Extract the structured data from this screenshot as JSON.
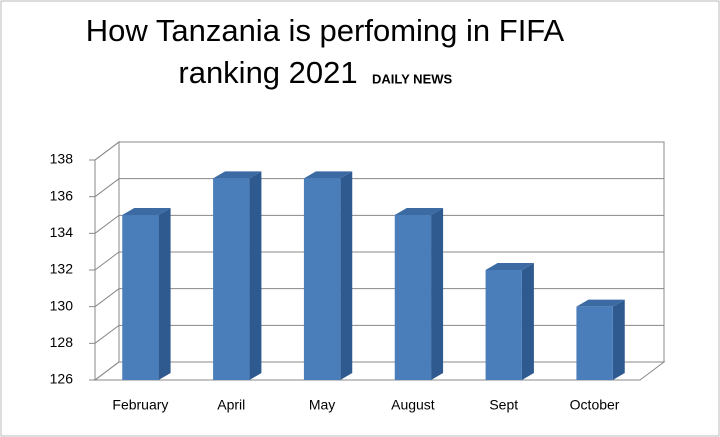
{
  "chart_data": {
    "type": "bar",
    "title": [
      "How Tanzania is perfoming in FIFA",
      "ranking 2021"
    ],
    "source": "DAILY NEWS",
    "categories": [
      "February",
      "April",
      "May",
      "August",
      "Sept",
      "October"
    ],
    "values": [
      135,
      137,
      137,
      135,
      132,
      130
    ],
    "color": "#4a7ebb",
    "ylim": [
      126,
      138
    ],
    "yticks": [
      126,
      128,
      130,
      132,
      134,
      136,
      138
    ],
    "grid": true
  }
}
